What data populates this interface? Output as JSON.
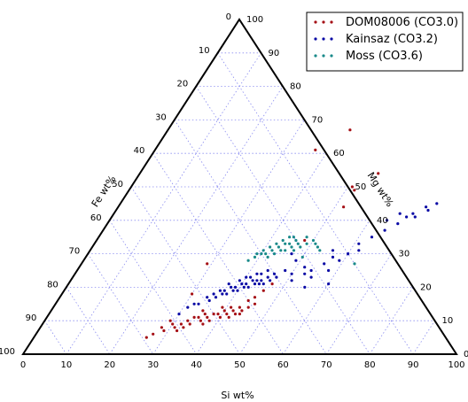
{
  "chart_data": {
    "type": "scatter",
    "subtype": "ternary",
    "axes": {
      "bottom": {
        "label": "Si wt%",
        "ticks": [
          "0",
          "10",
          "20",
          "30",
          "40",
          "50",
          "60",
          "70",
          "80",
          "90",
          "100"
        ]
      },
      "left": {
        "label": "Fe wt%",
        "ticks": [
          "0",
          "10",
          "20",
          "30",
          "40",
          "50",
          "60",
          "70",
          "80",
          "90",
          "100"
        ]
      },
      "right": {
        "label": "Mg wt%",
        "ticks": [
          "0",
          "10",
          "20",
          "30",
          "40",
          "50",
          "60",
          "70",
          "80",
          "90",
          "100"
        ]
      }
    },
    "ternary_range": [
      0,
      100
    ],
    "grid": true,
    "grid_style": "dotted",
    "grid_color": "#8a8cf0",
    "legend_position": "top-right",
    "series": [
      {
        "name": "DOM08006 (CO3.0)",
        "color": "#a50f15",
        "points": [
          {
            "si": 27,
            "mg": 6
          },
          {
            "si": 28,
            "mg": 8
          },
          {
            "si": 29,
            "mg": 7
          },
          {
            "si": 30,
            "mg": 9
          },
          {
            "si": 31,
            "mg": 8
          },
          {
            "si": 32,
            "mg": 9
          },
          {
            "si": 33,
            "mg": 10
          },
          {
            "si": 34,
            "mg": 9
          },
          {
            "si": 35,
            "mg": 11
          },
          {
            "si": 36,
            "mg": 10
          },
          {
            "si": 37,
            "mg": 11
          },
          {
            "si": 38,
            "mg": 12
          },
          {
            "si": 39,
            "mg": 12
          },
          {
            "si": 40,
            "mg": 13
          },
          {
            "si": 41,
            "mg": 12
          },
          {
            "si": 42,
            "mg": 13
          },
          {
            "si": 43,
            "mg": 14
          },
          {
            "si": 44,
            "mg": 13
          },
          {
            "si": 36,
            "mg": 12
          },
          {
            "si": 38,
            "mg": 10
          },
          {
            "si": 40,
            "mg": 11
          },
          {
            "si": 42,
            "mg": 11
          },
          {
            "si": 44,
            "mg": 12
          },
          {
            "si": 34,
            "mg": 11
          },
          {
            "si": 39,
            "mg": 14
          },
          {
            "si": 41,
            "mg": 14
          },
          {
            "si": 43,
            "mg": 12
          },
          {
            "si": 37,
            "mg": 9
          },
          {
            "si": 32,
            "mg": 7
          },
          {
            "si": 29,
            "mg": 10
          },
          {
            "si": 26,
            "mg": 5
          },
          {
            "si": 45,
            "mg": 14
          },
          {
            "si": 46,
            "mg": 15
          },
          {
            "si": 35,
            "mg": 13
          },
          {
            "si": 33,
            "mg": 8
          },
          {
            "si": 45,
            "mg": 17
          },
          {
            "si": 46,
            "mg": 19
          },
          {
            "si": 44,
            "mg": 16
          },
          {
            "si": 47,
            "mg": 21
          },
          {
            "si": 30,
            "mg": 18
          },
          {
            "si": 29,
            "mg": 27
          },
          {
            "si": 48,
            "mg": 34
          },
          {
            "si": 52,
            "mg": 44
          },
          {
            "si": 52,
            "mg": 49
          },
          {
            "si": 51,
            "mg": 50
          },
          {
            "si": 42,
            "mg": 67
          },
          {
            "si": 37,
            "mg": 61
          },
          {
            "si": 55,
            "mg": 54
          }
        ]
      },
      {
        "name": "Kainsaz (CO3.2)",
        "color": "#0a0aa5",
        "points": [
          {
            "si": 34,
            "mg": 17
          },
          {
            "si": 35,
            "mg": 18
          },
          {
            "si": 36,
            "mg": 17
          },
          {
            "si": 37,
            "mg": 19
          },
          {
            "si": 38,
            "mg": 20
          },
          {
            "si": 39,
            "mg": 19
          },
          {
            "si": 40,
            "mg": 21
          },
          {
            "si": 41,
            "mg": 20
          },
          {
            "si": 42,
            "mg": 22
          },
          {
            "si": 43,
            "mg": 21
          },
          {
            "si": 44,
            "mg": 22
          },
          {
            "si": 45,
            "mg": 23
          },
          {
            "si": 46,
            "mg": 24
          },
          {
            "si": 37,
            "mg": 21
          },
          {
            "si": 39,
            "mg": 22
          },
          {
            "si": 41,
            "mg": 23
          },
          {
            "si": 43,
            "mg": 24
          },
          {
            "si": 36,
            "mg": 19
          },
          {
            "si": 38,
            "mg": 18
          },
          {
            "si": 40,
            "mg": 19
          },
          {
            "si": 42,
            "mg": 20
          },
          {
            "si": 44,
            "mg": 21
          },
          {
            "si": 35,
            "mg": 16
          },
          {
            "si": 33,
            "mg": 15
          },
          {
            "si": 45,
            "mg": 21
          },
          {
            "si": 47,
            "mg": 23
          },
          {
            "si": 48,
            "mg": 25
          },
          {
            "si": 46,
            "mg": 22
          },
          {
            "si": 39,
            "mg": 20
          },
          {
            "si": 41,
            "mg": 21
          },
          {
            "si": 43,
            "mg": 22
          },
          {
            "si": 37,
            "mg": 18
          },
          {
            "si": 42,
            "mg": 24
          },
          {
            "si": 40,
            "mg": 23
          },
          {
            "si": 44,
            "mg": 25
          },
          {
            "si": 50,
            "mg": 24
          },
          {
            "si": 52,
            "mg": 26
          },
          {
            "si": 54,
            "mg": 25
          },
          {
            "si": 56,
            "mg": 27
          },
          {
            "si": 51,
            "mg": 22
          },
          {
            "si": 53,
            "mg": 24
          },
          {
            "si": 55,
            "mg": 23
          },
          {
            "si": 58,
            "mg": 25
          },
          {
            "si": 57,
            "mg": 29
          },
          {
            "si": 60,
            "mg": 30
          },
          {
            "si": 62,
            "mg": 31
          },
          {
            "si": 59,
            "mg": 28
          },
          {
            "si": 61,
            "mg": 33
          },
          {
            "si": 63,
            "mg": 35
          },
          {
            "si": 65,
            "mg": 37
          },
          {
            "si": 67,
            "mg": 39
          },
          {
            "si": 69,
            "mg": 42
          },
          {
            "si": 70,
            "mg": 41
          },
          {
            "si": 72,
            "mg": 43
          },
          {
            "si": 71,
            "mg": 44
          },
          {
            "si": 73,
            "mg": 45
          },
          {
            "si": 64,
            "mg": 40
          },
          {
            "si": 66,
            "mg": 42
          },
          {
            "si": 68,
            "mg": 41
          },
          {
            "si": 30,
            "mg": 12
          },
          {
            "si": 31,
            "mg": 14
          },
          {
            "si": 32,
            "mg": 15
          },
          {
            "si": 55,
            "mg": 20
          },
          {
            "si": 60,
            "mg": 21
          },
          {
            "si": 56,
            "mg": 31
          },
          {
            "si": 49,
            "mg": 28
          },
          {
            "si": 47,
            "mg": 30
          }
        ]
      },
      {
        "name": "Moss (CO3.6)",
        "color": "#1a8a8a",
        "points": [
          {
            "si": 39,
            "mg": 29
          },
          {
            "si": 40,
            "mg": 30
          },
          {
            "si": 41,
            "mg": 30
          },
          {
            "si": 42,
            "mg": 31
          },
          {
            "si": 43,
            "mg": 32
          },
          {
            "si": 44,
            "mg": 31
          },
          {
            "si": 45,
            "mg": 33
          },
          {
            "si": 46,
            "mg": 32
          },
          {
            "si": 40,
            "mg": 31
          },
          {
            "si": 42,
            "mg": 33
          },
          {
            "si": 44,
            "mg": 33
          },
          {
            "si": 43,
            "mg": 30
          },
          {
            "si": 41,
            "mg": 32
          },
          {
            "si": 45,
            "mg": 31
          },
          {
            "si": 47,
            "mg": 33
          },
          {
            "si": 46,
            "mg": 34
          },
          {
            "si": 38,
            "mg": 28
          },
          {
            "si": 39,
            "mg": 30
          },
          {
            "si": 44,
            "mg": 35
          },
          {
            "si": 45,
            "mg": 35
          },
          {
            "si": 42,
            "mg": 29
          },
          {
            "si": 48,
            "mg": 32
          },
          {
            "si": 49,
            "mg": 33
          },
          {
            "si": 50,
            "mg": 34
          },
          {
            "si": 47,
            "mg": 31
          },
          {
            "si": 43,
            "mg": 34
          },
          {
            "si": 48,
            "mg": 35
          },
          {
            "si": 52,
            "mg": 32
          },
          {
            "si": 51,
            "mg": 33
          },
          {
            "si": 50,
            "mg": 29
          },
          {
            "si": 53,
            "mg": 31
          },
          {
            "si": 63,
            "mg": 27
          }
        ]
      }
    ]
  }
}
